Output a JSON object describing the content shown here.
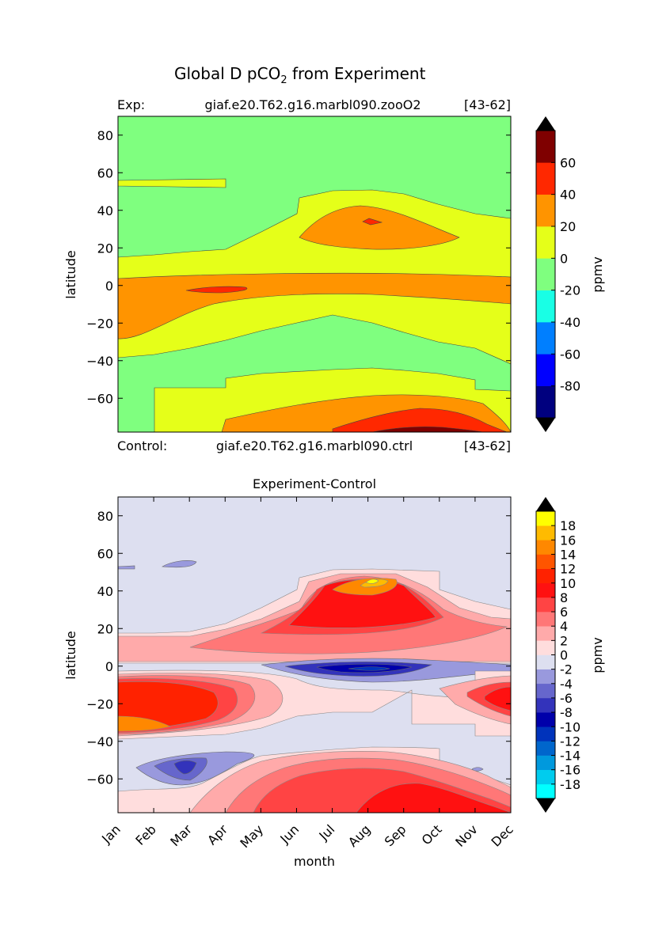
{
  "figure": {
    "title_main": "Global D pCO",
    "title_sub": "2",
    "title_tail": " from Experiment"
  },
  "chart_data": [
    {
      "type": "heatmap",
      "name": "experiment",
      "left_label": "Exp:",
      "center_label": "giaf.e20.T62.g16.marbl090.zooO2",
      "right_label": "[43-62]",
      "ylabel": "latitude",
      "yticks": [
        "80",
        "60",
        "40",
        "20",
        "0",
        "−20",
        "−40",
        "−60"
      ],
      "ytick_values": [
        80,
        60,
        40,
        20,
        0,
        -20,
        -40,
        -60
      ],
      "ylim": [
        -78,
        90
      ],
      "xlim": [
        0,
        11
      ],
      "colorbar_label": "ppmv",
      "levels": [
        -100,
        -80,
        -60,
        -40,
        -20,
        0,
        20,
        40,
        60,
        80
      ],
      "colorbar_ticks": [
        "-80",
        "-60",
        "-40",
        "-20",
        "0",
        "20",
        "40",
        "60"
      ],
      "colors": [
        "#00007f",
        "#0000ff",
        "#007fff",
        "#19ffe5",
        "#7fff7f",
        "#e5ff19",
        "#ff9400",
        "#ff2800",
        "#7f0000"
      ],
      "extend_low": "#000000",
      "extend_high": "#000000"
    },
    {
      "type": "heatmap",
      "name": "control",
      "left_label": "Control:",
      "center_label": "giaf.e20.T62.g16.marbl090.ctrl",
      "right_label": "[43-62]",
      "title": "Experiment-Control",
      "xlabel": "month",
      "ylabel": "latitude",
      "xticks": [
        "Jan",
        "Feb",
        "Mar",
        "Apr",
        "May",
        "Jun",
        "Jul",
        "Aug",
        "Sep",
        "Oct",
        "Nov",
        "Dec"
      ],
      "yticks": [
        "80",
        "60",
        "40",
        "20",
        "0",
        "−20",
        "−40",
        "−60"
      ],
      "ytick_values": [
        80,
        60,
        40,
        20,
        0,
        -20,
        -40,
        -60
      ],
      "ylim": [
        -78,
        90
      ],
      "xlim": [
        0,
        11
      ],
      "colorbar_label": "ppmv",
      "levels": [
        -20,
        -18,
        -16,
        -14,
        -12,
        -10,
        -8,
        -6,
        -4,
        -2,
        0,
        2,
        4,
        6,
        8,
        10,
        12,
        14,
        16,
        18,
        20
      ],
      "colorbar_ticks": [
        "18",
        "16",
        "14",
        "12",
        "10",
        "8",
        "6",
        "4",
        "2",
        "0",
        "-2",
        "-4",
        "-6",
        "-8",
        "-10",
        "-12",
        "-14",
        "-16",
        "-18"
      ],
      "colors": [
        "#00ffff",
        "#00ccee",
        "#0099dd",
        "#0066cc",
        "#0033bb",
        "#0000aa",
        "#3333bb",
        "#6666cc",
        "#9999dd",
        "#dddff0",
        "#ffdddd",
        "#ffaaaa",
        "#ff7777",
        "#ff4444",
        "#ff1111",
        "#ff2200",
        "#ff5500",
        "#ff8800",
        "#ffbb00",
        "#ffff00"
      ],
      "extend_low": "#000000",
      "extend_high": "#000000"
    }
  ]
}
